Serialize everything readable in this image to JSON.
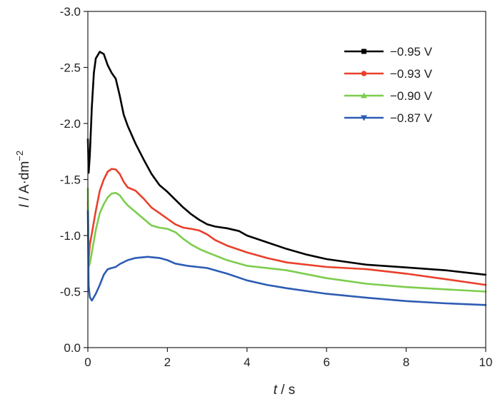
{
  "chart_data": {
    "type": "line",
    "xlabel": {
      "var": "t",
      "unit": " / s"
    },
    "ylabel": {
      "var": "I",
      "unit": " / A·dm",
      "sup": "−2"
    },
    "xlim": [
      0,
      10
    ],
    "ylim": [
      0.0,
      -3.0
    ],
    "y_inverted": true,
    "x_ticks": [
      0,
      2,
      4,
      6,
      8,
      10
    ],
    "x_tick_labels": [
      "0",
      "2",
      "4",
      "6",
      "8",
      "10"
    ],
    "y_ticks": [
      0.0,
      -0.5,
      -1.0,
      -1.5,
      -2.0,
      -2.5,
      -3.0
    ],
    "y_tick_labels": [
      "0.0",
      "-0.5",
      "-1.0",
      "-1.5",
      "-2.0",
      "-2.5",
      "-3.0"
    ],
    "grid": false,
    "legend_position": "top-right",
    "series": [
      {
        "name": "−0.95 V",
        "color": "#000000",
        "marker": "square",
        "points": [
          [
            0.0,
            -1.86
          ],
          [
            0.02,
            -1.56
          ],
          [
            0.05,
            -1.72
          ],
          [
            0.1,
            -2.15
          ],
          [
            0.15,
            -2.45
          ],
          [
            0.2,
            -2.58
          ],
          [
            0.3,
            -2.64
          ],
          [
            0.4,
            -2.62
          ],
          [
            0.5,
            -2.52
          ],
          [
            0.6,
            -2.45
          ],
          [
            0.7,
            -2.4
          ],
          [
            0.8,
            -2.25
          ],
          [
            0.9,
            -2.08
          ],
          [
            1.0,
            -1.98
          ],
          [
            1.2,
            -1.82
          ],
          [
            1.4,
            -1.68
          ],
          [
            1.6,
            -1.55
          ],
          [
            1.8,
            -1.45
          ],
          [
            2.0,
            -1.39
          ],
          [
            2.2,
            -1.32
          ],
          [
            2.4,
            -1.25
          ],
          [
            2.6,
            -1.19
          ],
          [
            2.8,
            -1.14
          ],
          [
            3.0,
            -1.1
          ],
          [
            3.2,
            -1.08
          ],
          [
            3.5,
            -1.065
          ],
          [
            3.8,
            -1.04
          ],
          [
            4.0,
            -1.0
          ],
          [
            4.5,
            -0.94
          ],
          [
            5.0,
            -0.88
          ],
          [
            5.5,
            -0.83
          ],
          [
            6.0,
            -0.79
          ],
          [
            7.0,
            -0.74
          ],
          [
            8.0,
            -0.715
          ],
          [
            9.0,
            -0.69
          ],
          [
            10.0,
            -0.65
          ]
        ]
      },
      {
        "name": "−0.93 V",
        "color": "#e8402a",
        "marker": "circle",
        "points": [
          [
            0.0,
            -1.3
          ],
          [
            0.02,
            -0.78
          ],
          [
            0.05,
            -0.92
          ],
          [
            0.1,
            -1.02
          ],
          [
            0.2,
            -1.22
          ],
          [
            0.3,
            -1.4
          ],
          [
            0.4,
            -1.5
          ],
          [
            0.5,
            -1.57
          ],
          [
            0.6,
            -1.595
          ],
          [
            0.7,
            -1.59
          ],
          [
            0.8,
            -1.55
          ],
          [
            0.9,
            -1.48
          ],
          [
            1.0,
            -1.43
          ],
          [
            1.2,
            -1.4
          ],
          [
            1.4,
            -1.33
          ],
          [
            1.6,
            -1.25
          ],
          [
            1.8,
            -1.2
          ],
          [
            2.0,
            -1.15
          ],
          [
            2.2,
            -1.1
          ],
          [
            2.4,
            -1.07
          ],
          [
            2.6,
            -1.06
          ],
          [
            2.8,
            -1.045
          ],
          [
            3.0,
            -1.01
          ],
          [
            3.2,
            -0.96
          ],
          [
            3.5,
            -0.91
          ],
          [
            4.0,
            -0.85
          ],
          [
            4.5,
            -0.8
          ],
          [
            5.0,
            -0.76
          ],
          [
            6.0,
            -0.72
          ],
          [
            7.0,
            -0.7
          ],
          [
            8.0,
            -0.66
          ],
          [
            9.0,
            -0.61
          ],
          [
            10.0,
            -0.56
          ]
        ]
      },
      {
        "name": "−0.90 V",
        "color": "#7ccd4c",
        "marker": "triangle-up",
        "points": [
          [
            0.0,
            -1.42
          ],
          [
            0.02,
            -0.72
          ],
          [
            0.05,
            -0.75
          ],
          [
            0.1,
            -0.85
          ],
          [
            0.2,
            -1.05
          ],
          [
            0.3,
            -1.2
          ],
          [
            0.4,
            -1.28
          ],
          [
            0.5,
            -1.34
          ],
          [
            0.6,
            -1.375
          ],
          [
            0.7,
            -1.38
          ],
          [
            0.8,
            -1.36
          ],
          [
            0.9,
            -1.31
          ],
          [
            1.0,
            -1.27
          ],
          [
            1.2,
            -1.21
          ],
          [
            1.4,
            -1.15
          ],
          [
            1.6,
            -1.09
          ],
          [
            1.8,
            -1.07
          ],
          [
            2.0,
            -1.06
          ],
          [
            2.2,
            -1.03
          ],
          [
            2.4,
            -0.97
          ],
          [
            2.6,
            -0.92
          ],
          [
            2.8,
            -0.88
          ],
          [
            3.0,
            -0.85
          ],
          [
            3.5,
            -0.78
          ],
          [
            4.0,
            -0.73
          ],
          [
            4.5,
            -0.71
          ],
          [
            5.0,
            -0.69
          ],
          [
            6.0,
            -0.62
          ],
          [
            7.0,
            -0.57
          ],
          [
            8.0,
            -0.54
          ],
          [
            9.0,
            -0.52
          ],
          [
            10.0,
            -0.5
          ]
        ]
      },
      {
        "name": "−0.87 V",
        "color": "#2c5cb4",
        "marker": "triangle-down",
        "points": [
          [
            0.0,
            -1.22
          ],
          [
            0.02,
            -0.55
          ],
          [
            0.05,
            -0.45
          ],
          [
            0.1,
            -0.42
          ],
          [
            0.2,
            -0.48
          ],
          [
            0.3,
            -0.56
          ],
          [
            0.4,
            -0.65
          ],
          [
            0.5,
            -0.7
          ],
          [
            0.6,
            -0.71
          ],
          [
            0.7,
            -0.72
          ],
          [
            0.8,
            -0.745
          ],
          [
            1.0,
            -0.78
          ],
          [
            1.2,
            -0.8
          ],
          [
            1.5,
            -0.81
          ],
          [
            1.8,
            -0.8
          ],
          [
            2.0,
            -0.78
          ],
          [
            2.2,
            -0.75
          ],
          [
            2.5,
            -0.73
          ],
          [
            3.0,
            -0.71
          ],
          [
            3.5,
            -0.66
          ],
          [
            4.0,
            -0.6
          ],
          [
            4.5,
            -0.56
          ],
          [
            5.0,
            -0.53
          ],
          [
            6.0,
            -0.48
          ],
          [
            7.0,
            -0.445
          ],
          [
            8.0,
            -0.415
          ],
          [
            9.0,
            -0.395
          ],
          [
            10.0,
            -0.38
          ]
        ]
      }
    ]
  }
}
